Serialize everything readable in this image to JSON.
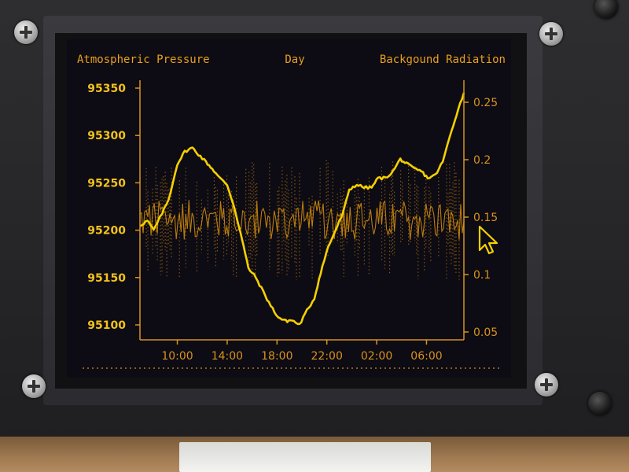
{
  "colors": {
    "pressure": "#f5d000",
    "radiation": "#d9900c",
    "axis": "#d79520",
    "cursor": "#f5d000"
  },
  "chart_data": {
    "type": "line",
    "title": "Day",
    "xlabel": "",
    "ylabel": "Atmospheric Pressure",
    "y2label": "Backgound Radiation",
    "x_tick_labels": [
      "10:00",
      "14:00",
      "18:00",
      "22:00",
      "02:00",
      "06:00"
    ],
    "x_range_hours": [
      7.0,
      33.0
    ],
    "x_tick_hours": [
      10,
      14,
      18,
      22,
      26,
      30
    ],
    "ylim": [
      95100,
      95350
    ],
    "y_ticks": [
      95350,
      95300,
      95250,
      95200,
      95150,
      95100
    ],
    "y2lim": [
      0.05,
      0.25
    ],
    "y2_ticks": [
      0.25,
      0.2,
      0.15,
      0.1,
      0.05
    ],
    "series": [
      {
        "name": "Atmospheric Pressure",
        "axis": "left",
        "style": "line",
        "x": [
          7.0,
          7.6,
          8.1,
          8.6,
          9.3,
          10.0,
          10.6,
          11.2,
          11.7,
          12.3,
          12.8,
          13.4,
          14.0,
          14.6,
          15.2,
          15.7,
          16.3,
          16.9,
          17.5,
          18.1,
          18.7,
          19.2,
          19.8,
          20.4,
          21.0,
          21.5,
          22.1,
          22.7,
          23.3,
          23.8,
          24.4,
          25.0,
          25.6,
          26.1,
          26.7,
          27.3,
          27.9,
          28.4,
          29.0,
          29.6,
          30.1,
          30.7,
          31.3,
          31.9,
          32.4,
          33.0
        ],
        "values": [
          95205,
          95210,
          95200,
          95213,
          95232,
          95270,
          95283,
          95287,
          95280,
          95272,
          95265,
          95255,
          95248,
          95223,
          95190,
          95160,
          95150,
          95135,
          95120,
          95108,
          95104,
          95105,
          95100,
          95115,
          95128,
          95155,
          95182,
          95200,
          95218,
          95243,
          95248,
          95245,
          95245,
          95255,
          95255,
          95262,
          95275,
          95270,
          95265,
          95262,
          95255,
          95258,
          95272,
          95300,
          95322,
          95345
        ]
      },
      {
        "name": "Backgound Radiation",
        "axis": "right",
        "style": "noisy-band",
        "x_range_hours": [
          7.0,
          33.0
        ],
        "mean": 0.148,
        "typical_min": 0.13,
        "typical_max": 0.165,
        "extreme_min": 0.095,
        "extreme_max": 0.2
      }
    ],
    "grid": false,
    "legend": "none"
  }
}
